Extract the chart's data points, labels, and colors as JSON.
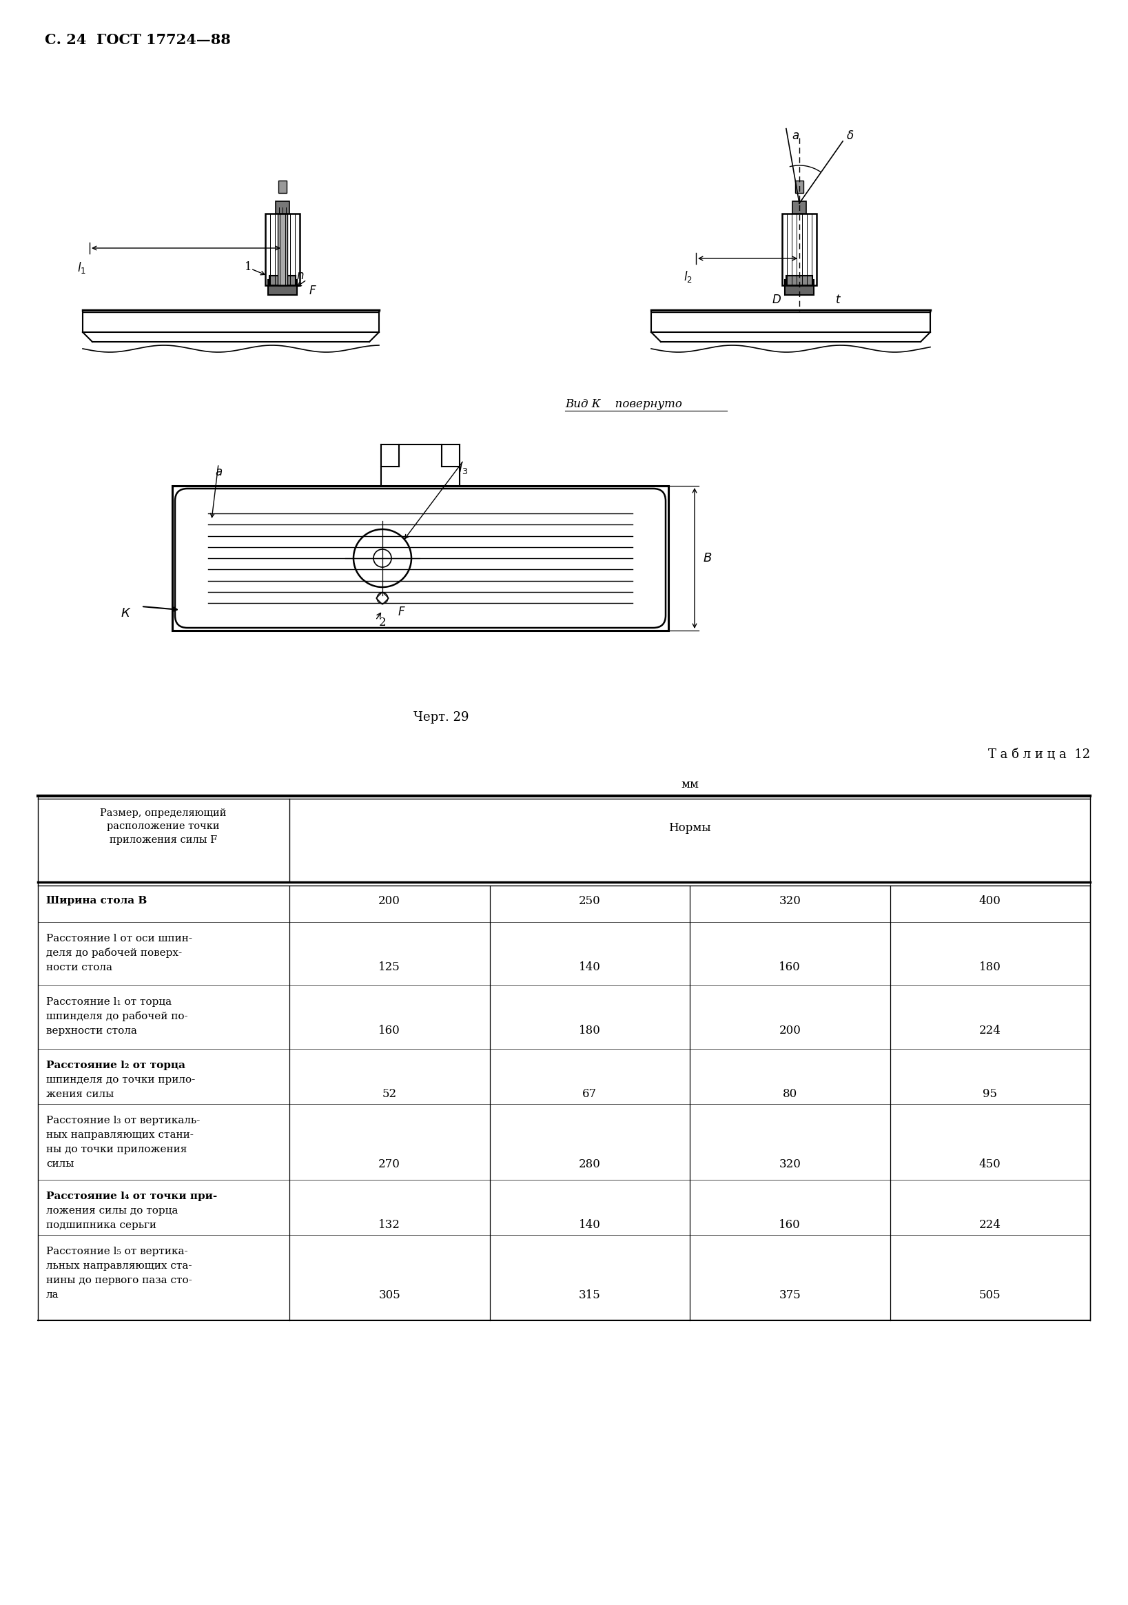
{
  "header": "С. 24  ГОСТ 17724—88",
  "chert_label": "Черт. 29",
  "vid_label": "Вид К    повернуто",
  "table_title": "Т а б л и ц а  12",
  "mm_label": "мм",
  "col_header_left": "Размер, определяющий\nрасположение точки\nприложения силы F",
  "col_header_right": "Нормы",
  "rows": [
    {
      "label_lines": [
        "Ширина стола B"
      ],
      "label_bold_lines": [
        true
      ],
      "values": [
        "200",
        "250",
        "320",
        "400"
      ]
    },
    {
      "label_lines": [
        "Расстояние l от оси шпин-",
        "деля до рабочей поверх-",
        "ности стола"
      ],
      "label_bold_lines": [
        false,
        false,
        false
      ],
      "values": [
        "125",
        "140",
        "160",
        "180"
      ]
    },
    {
      "label_lines": [
        "Расстояние l₁ от торца",
        "шпинделя до рабочей по-",
        "верхности стола"
      ],
      "label_bold_lines": [
        false,
        false,
        false
      ],
      "values": [
        "160",
        "180",
        "200",
        "224"
      ]
    },
    {
      "label_lines": [
        "Расстояние l₂ от торца",
        "шпинделя до точки прило-",
        "жения силы"
      ],
      "label_bold_lines": [
        true,
        false,
        false
      ],
      "values": [
        "52",
        "67",
        "80",
        "95"
      ]
    },
    {
      "label_lines": [
        "Расстояние l₃ от вертикаль-",
        "ных направляющих стани-",
        "ны до точки приложения",
        "силы"
      ],
      "label_bold_lines": [
        false,
        false,
        false,
        false
      ],
      "values": [
        "270",
        "280",
        "320",
        "450"
      ]
    },
    {
      "label_lines": [
        "Расстояние l₄ от точки при-",
        "ложения силы до торца",
        "подшипника серьги"
      ],
      "label_bold_lines": [
        true,
        false,
        false
      ],
      "values": [
        "132",
        "140",
        "160",
        "224"
      ]
    },
    {
      "label_lines": [
        "Расстояние l₅ от вертика-",
        "льных направляющих ста-",
        "нины до первого паза сто-",
        "ла"
      ],
      "label_bold_lines": [
        false,
        false,
        false,
        false
      ],
      "values": [
        "305",
        "315",
        "375",
        "505"
      ]
    }
  ],
  "bg_color": "#ffffff",
  "text_color": "#000000"
}
